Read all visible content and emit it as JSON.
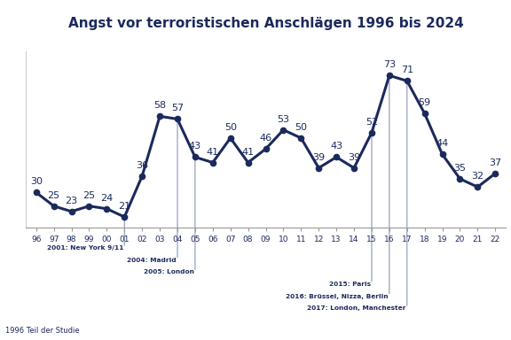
{
  "chart_data": {
    "type": "line",
    "title": "Angst vor terroristischen Anschlägen 1996 bis 2024",
    "categories": [
      "96",
      "97",
      "98",
      "99",
      "00",
      "01",
      "02",
      "03",
      "04",
      "05",
      "06",
      "07",
      "08",
      "09",
      "10",
      "11",
      "12",
      "13",
      "14",
      "15",
      "16",
      "17",
      "18",
      "19",
      "20",
      "21",
      "22"
    ],
    "values": [
      30,
      25,
      23,
      25,
      24,
      21,
      36,
      58,
      57,
      43,
      41,
      50,
      41,
      46,
      53,
      50,
      39,
      43,
      39,
      52,
      73,
      71,
      59,
      44,
      35,
      32,
      37
    ],
    "color": "#1b2a5c",
    "marker": "o",
    "line_style": "solid",
    "data_labels": true,
    "tick_labels": "x",
    "grid": false,
    "ylim": [
      17,
      82
    ],
    "annotations": [
      {
        "category": "01",
        "text": "2001: New York 9/11"
      },
      {
        "category": "04",
        "text": "2004: Madrid"
      },
      {
        "category": "05",
        "text": "2005: London"
      },
      {
        "category": "15",
        "text": "2015: Paris"
      },
      {
        "category": "16",
        "text": "2016: Brüssel, Nizza, Berlin"
      },
      {
        "category": "17",
        "text": "2017: London, Manchester"
      }
    ],
    "footnote": "1996 Teil der Studie"
  }
}
